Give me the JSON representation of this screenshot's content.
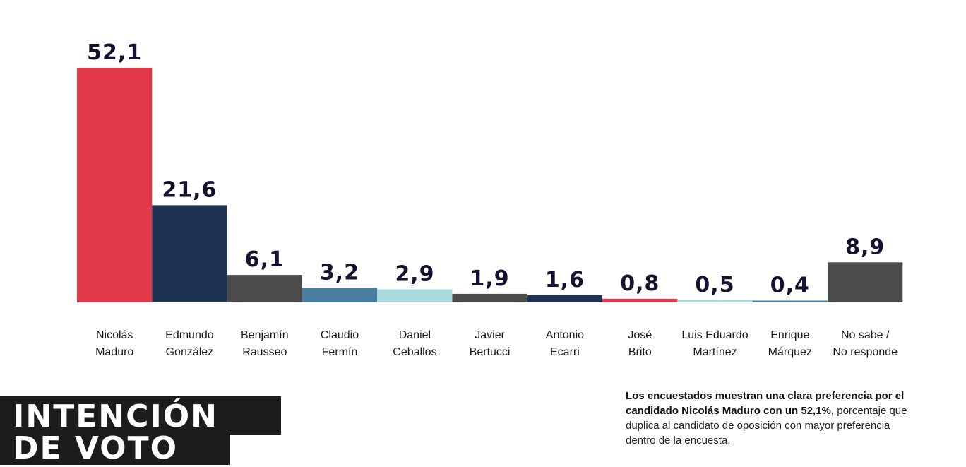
{
  "title": {
    "line1": "INTENCIÓN",
    "line2": "DE VOTO"
  },
  "note": {
    "bold": "Los encuestados muestran una clara preferencia por el candidado Nicolás Maduro con un 52,1%,",
    "regular": "porcentaje que duplica al candidato de oposición con mayor preferencia dentro de la encuesta."
  },
  "colors": {
    "red": "#e23a4a",
    "navy": "#1e3351",
    "gray": "#4b4b4b",
    "steel": "#4a7ea0",
    "lightblue": "#a9d8dd",
    "value_text": "#14122e"
  },
  "chart_data": {
    "type": "bar",
    "categories": [
      [
        "Nicolás",
        "Maduro"
      ],
      [
        "Edmundo",
        "González"
      ],
      [
        "Benjamín",
        "Rausseo"
      ],
      [
        "Claudio",
        "Fermín"
      ],
      [
        "Daniel",
        "Ceballos"
      ],
      [
        "Javier",
        "Bertucci"
      ],
      [
        "Antonio",
        "Ecarri"
      ],
      [
        "José",
        "Brito"
      ],
      [
        "Luis Eduardo",
        "Martínez"
      ],
      [
        "Enrique",
        "Márquez"
      ],
      [
        "No sabe /",
        "No responde"
      ]
    ],
    "values": [
      52.1,
      21.6,
      6.1,
      3.2,
      2.9,
      1.9,
      1.6,
      0.8,
      0.5,
      0.4,
      8.9
    ],
    "value_labels": [
      "52,1",
      "21,6",
      "6,1",
      "3,2",
      "2,9",
      "1,9",
      "1,6",
      "0,8",
      "0,5",
      "0,4",
      "8,9"
    ],
    "bar_colors": [
      "#e23a4a",
      "#1e3351",
      "#4b4b4b",
      "#4a7ea0",
      "#a9d8dd",
      "#4b4b4b",
      "#1e3351",
      "#e23a4a",
      "#a9d8dd",
      "#4a7ea0",
      "#4b4b4b"
    ],
    "ylim": [
      0,
      52.1
    ],
    "grid": false,
    "legend": "none"
  }
}
